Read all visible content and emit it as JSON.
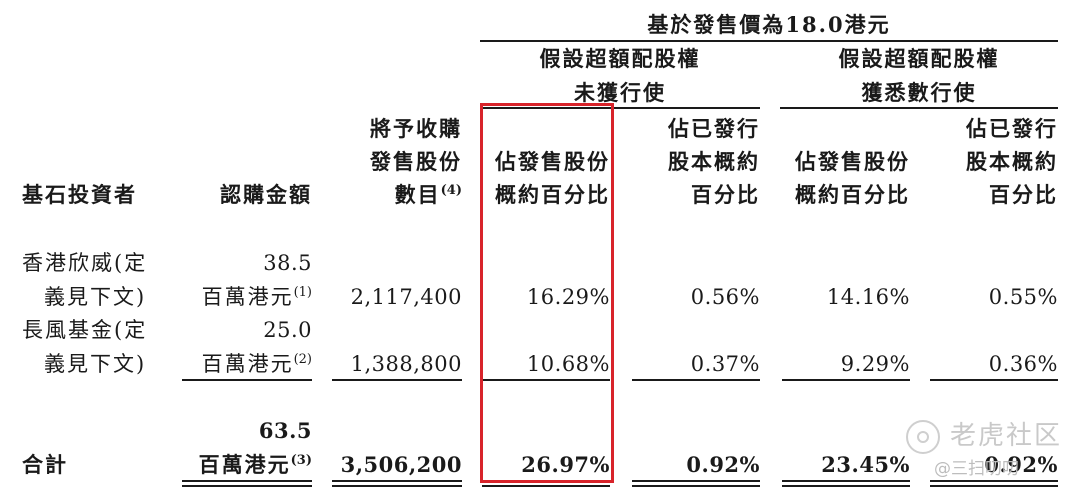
{
  "header": {
    "offer_price_group": "基於發售價為18.0港元",
    "not_exercised_line1": "假設超額配股權",
    "not_exercised_line2": "未獲行使",
    "fully_exercised_line1": "假設超額配股權",
    "fully_exercised_line2": "獲悉數行使"
  },
  "columns": {
    "investor": "基石投資者",
    "amount": "認購金額",
    "shares_line1": "將予收購",
    "shares_line2": "發售股份",
    "shares_line3": "數目",
    "shares_note": "(4)",
    "pct_offer_line1": "佔發售股份",
    "pct_offer_line2": "概約百分比",
    "pct_issued_line1": "佔已發行",
    "pct_issued_line2": "股本概約",
    "pct_issued_line3": "百分比"
  },
  "rows": [
    {
      "investor_line1": "香港欣威(定",
      "investor_line2": "義見下文)",
      "amount_value": "38.5",
      "amount_unit": "百萬港元",
      "amount_note": "(1)",
      "shares": "2,117,400",
      "pct_offer_not_exercised": "16.29%",
      "pct_issued_not_exercised": "0.56%",
      "pct_offer_exercised": "14.16%",
      "pct_issued_exercised": "0.55%"
    },
    {
      "investor_line1": "長風基金(定",
      "investor_line2": "義見下文)",
      "amount_value": "25.0",
      "amount_unit": "百萬港元",
      "amount_note": "(2)",
      "shares": "1,388,800",
      "pct_offer_not_exercised": "10.68%",
      "pct_issued_not_exercised": "0.37%",
      "pct_offer_exercised": "9.29%",
      "pct_issued_exercised": "0.36%"
    }
  ],
  "total": {
    "label": "合計",
    "amount_value": "63.5",
    "amount_unit": "百萬港元",
    "amount_note": "(3)",
    "shares": "3,506,200",
    "pct_offer_not_exercised": "26.97%",
    "pct_issued_not_exercised": "0.92%",
    "pct_offer_exercised": "23.45%",
    "pct_issued_exercised": "0.92%"
  },
  "highlight_color": "#d8232a",
  "watermark": {
    "brand": "老虎社区",
    "user": "@三扫叨叨"
  }
}
